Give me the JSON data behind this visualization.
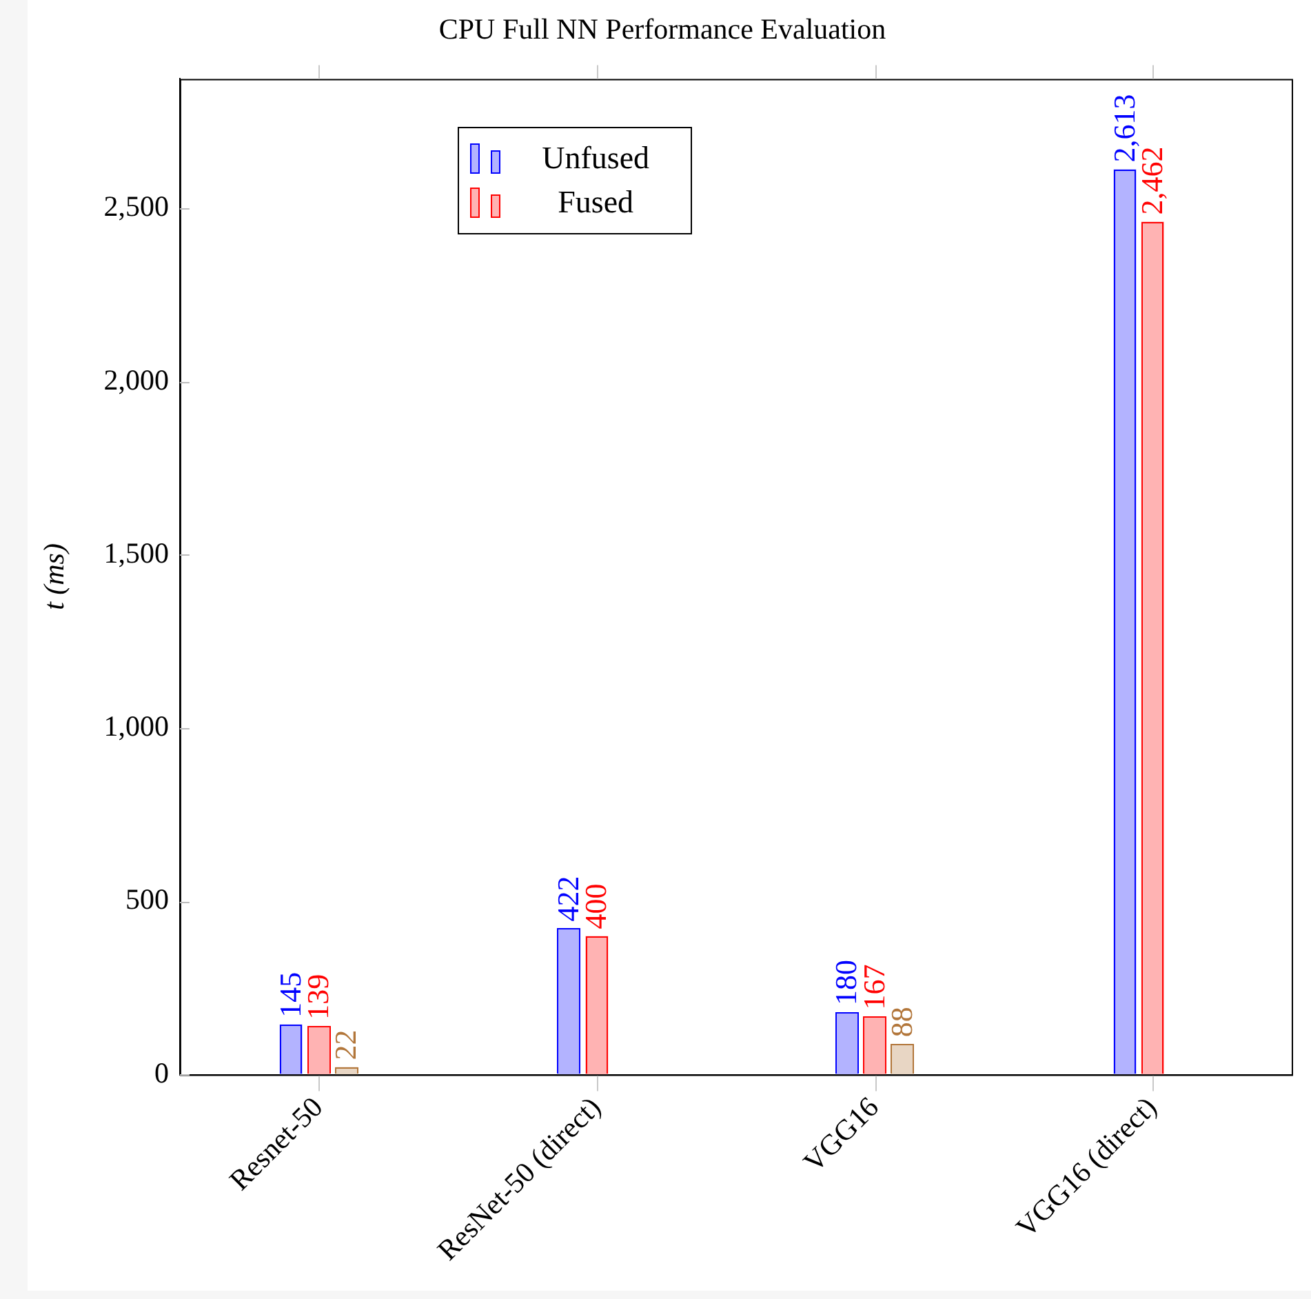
{
  "chart_data": {
    "type": "bar",
    "title": "CPU Full NN Performance Evaluation",
    "ylabel": "t (ms)",
    "categories": [
      "Resnet-50",
      "ResNet-50 (direct)",
      "VGG16",
      "VGG16 (direct)"
    ],
    "series": [
      {
        "name": "Unfused",
        "color": "#b3b3ff",
        "values": [
          145,
          422,
          180,
          2613
        ],
        "value_labels": [
          "145",
          "422",
          "180",
          "2,613"
        ]
      },
      {
        "name": "Fused",
        "color": "#ffb3b3",
        "values": [
          139,
          400,
          167,
          2462
        ],
        "value_labels": [
          "139",
          "400",
          "167",
          "2,462"
        ]
      },
      {
        "color": "#e8d6c4",
        "values": [
          22,
          null,
          88,
          null
        ],
        "value_labels": [
          "22",
          null,
          "88",
          null
        ]
      }
    ],
    "ylim": [
      0,
      2874
    ],
    "yticks": [
      0,
      500,
      {
        "value": 1000,
        "label": "1,000"
      },
      {
        "value": 1500,
        "label": "1,500"
      },
      {
        "value": 2000,
        "label": "2,000"
      },
      {
        "value": 2500,
        "label": "2,500"
      }
    ],
    "legend": "top left"
  }
}
